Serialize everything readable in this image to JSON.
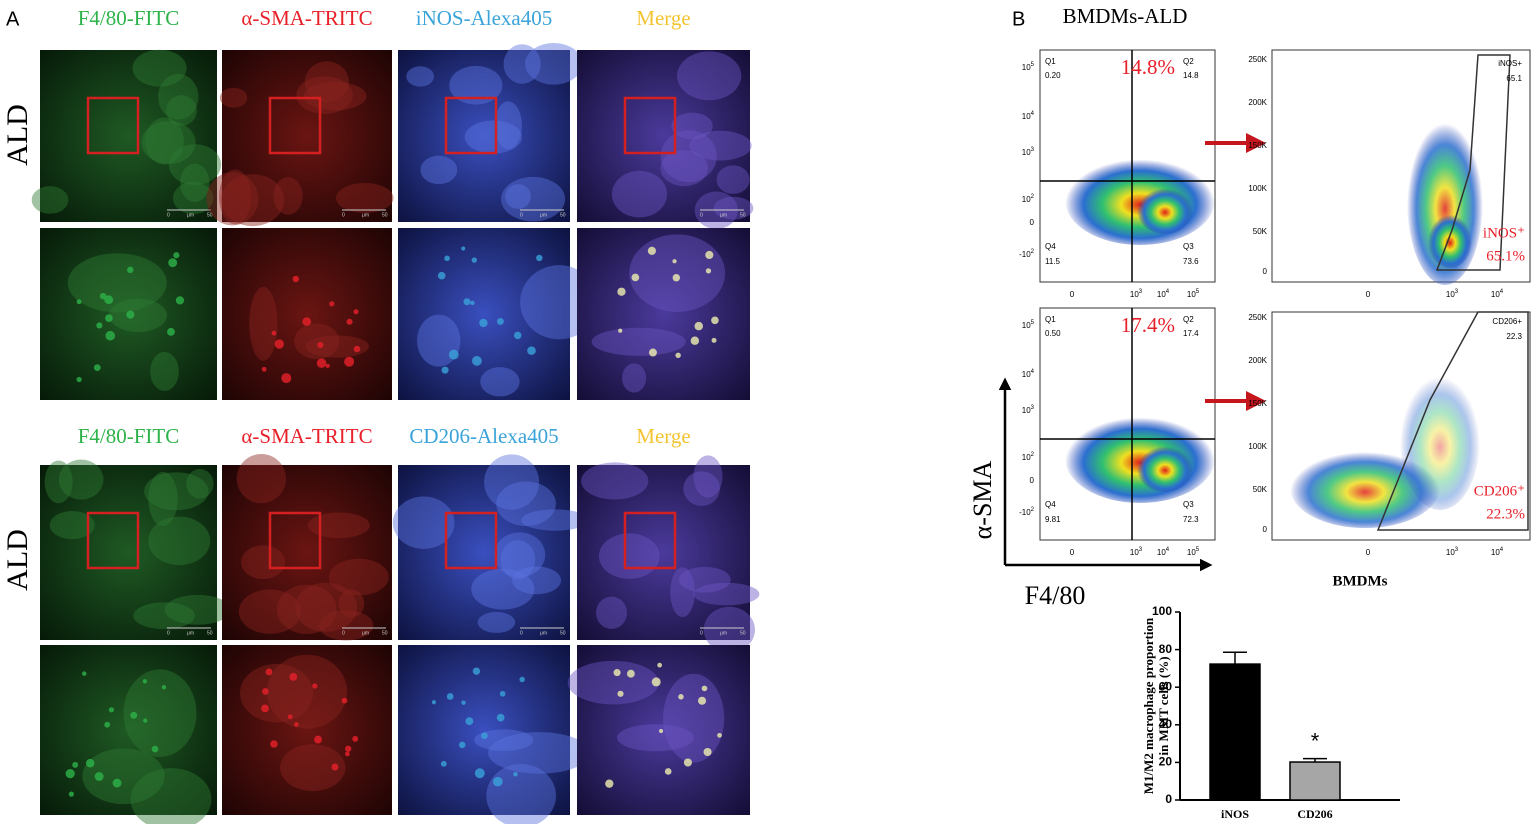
{
  "panel_a": {
    "label": "A",
    "groups": [
      {
        "row_label": "ALD",
        "channels": [
          "F4/80-FITC",
          "α-SMA-TRITC",
          "iNOS-Alexa405",
          "Merge"
        ]
      },
      {
        "row_label": "ALD",
        "channels": [
          "F4/80-FITC",
          "α-SMA-TRITC",
          "CD206-Alexa405",
          "Merge"
        ]
      }
    ],
    "scale_bar": [
      "0",
      "μm",
      "50"
    ]
  },
  "panel_b": {
    "label": "B",
    "title": "BMDMs-ALD",
    "y_axis_label": "α-SMA",
    "x_axis_label": "F4/80",
    "gate_axis_label": "BMDMs",
    "log_y_ticks": [
      {
        "base": "10",
        "exp": "5"
      },
      {
        "base": "10",
        "exp": "4"
      },
      {
        "base": "10",
        "exp": "3"
      },
      {
        "base": "10",
        "exp": "2"
      },
      {
        "base": "0"
      },
      {
        "base": "-10",
        "exp": "2"
      }
    ],
    "log_x_ticks": [
      {
        "base": "0"
      },
      {
        "base": "10",
        "exp": "3"
      },
      {
        "base": "10",
        "exp": "4"
      },
      {
        "base": "10",
        "exp": "5"
      }
    ],
    "linear_y_ticks": [
      "250K",
      "200K",
      "150K",
      "100K",
      "50K",
      "0"
    ],
    "plots": [
      {
        "q1": [
          "Q1",
          "0.20"
        ],
        "q2": [
          "Q2",
          "14.8"
        ],
        "q3": [
          "Q3",
          "73.6"
        ],
        "q4": [
          "Q4",
          "11.5"
        ],
        "highlight": "14.8%",
        "gate": [
          "iNOS+",
          "65.1"
        ],
        "gate_overlay": [
          "iNOS⁺",
          "65.1%"
        ]
      },
      {
        "q1": [
          "Q1",
          "0.50"
        ],
        "q2": [
          "Q2",
          "17.4"
        ],
        "q3": [
          "Q3",
          "72.3"
        ],
        "q4": [
          "Q4",
          "9.81"
        ],
        "highlight": "17.4%",
        "gate": [
          "CD206+",
          "22.3"
        ],
        "gate_overlay": [
          "CD206⁺",
          "22.3%"
        ]
      }
    ]
  },
  "chart_data": {
    "type": "bar",
    "y_label": [
      "M1/M2 macrophage proportion",
      "in MMT cells (%)"
    ],
    "categories": [
      "iNOS",
      "CD206"
    ],
    "values": [
      72.3,
      20.2
    ],
    "errors": [
      6.3,
      1.8
    ],
    "colors": [
      "#000000",
      "#a6a6a6"
    ],
    "ylim": [
      0,
      100
    ],
    "yticks": [
      0,
      20,
      40,
      60,
      80,
      100
    ],
    "annotation": "*"
  }
}
